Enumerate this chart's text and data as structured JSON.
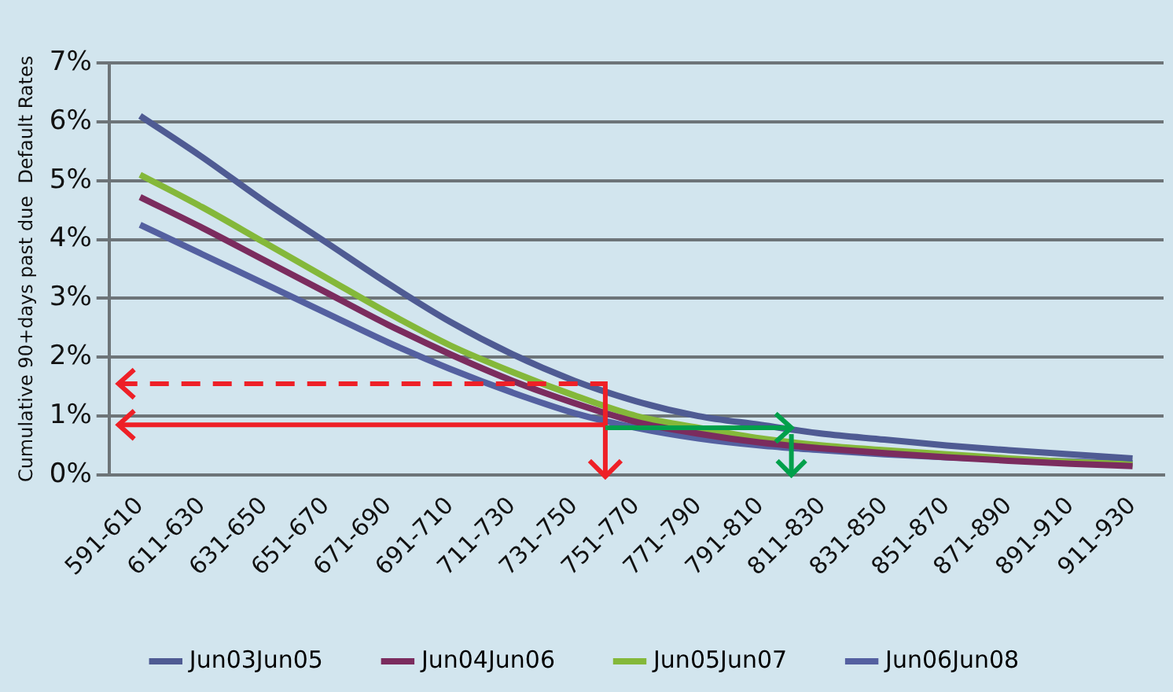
{
  "chart_data": {
    "type": "line",
    "ylabel": "Cumulative 90+days past due  Default Rates",
    "categories": [
      "591-610",
      "611-630",
      "631-650",
      "651-670",
      "671-690",
      "691-710",
      "711-730",
      "731-750",
      "751-770",
      "771-790",
      "791-810",
      "811-830",
      "831-850",
      "851-870",
      "871-890",
      "891-910",
      "911-930"
    ],
    "series": [
      {
        "name": "Jun03Jun05",
        "color": "#4f5b93",
        "values": [
          6.1,
          5.4,
          4.65,
          3.95,
          3.25,
          2.6,
          2.05,
          1.6,
          1.25,
          1.0,
          0.85,
          0.7,
          0.6,
          0.5,
          0.42,
          0.35,
          0.28
        ]
      },
      {
        "name": "Jun04Jun06",
        "color": "#7b2c5e",
        "values": [
          4.72,
          4.2,
          3.65,
          3.1,
          2.55,
          2.05,
          1.6,
          1.22,
          0.9,
          0.7,
          0.55,
          0.45,
          0.37,
          0.3,
          0.24,
          0.19,
          0.15
        ]
      },
      {
        "name": "Jun05Jun07",
        "color": "#84b83a",
        "values": [
          5.1,
          4.55,
          3.95,
          3.35,
          2.75,
          2.2,
          1.75,
          1.35,
          1.0,
          0.8,
          0.62,
          0.5,
          0.42,
          0.35,
          0.28,
          0.22,
          0.18
        ]
      },
      {
        "name": "Jun06Jun08",
        "color": "#5460a0",
        "values": [
          4.25,
          3.75,
          3.25,
          2.75,
          2.25,
          1.8,
          1.4,
          1.05,
          0.8,
          0.62,
          0.5,
          0.42,
          0.35,
          0.3,
          0.26,
          0.23,
          0.2
        ]
      }
    ],
    "ylim": [
      0,
      7
    ],
    "yticks": [
      {
        "value": 0,
        "label": "0%"
      },
      {
        "value": 1,
        "label": "1%"
      },
      {
        "value": 2,
        "label": "2%"
      },
      {
        "value": 3,
        "label": "3%"
      },
      {
        "value": 4,
        "label": "4%"
      },
      {
        "value": 5,
        "label": "5%"
      },
      {
        "value": 6,
        "label": "6%"
      },
      {
        "value": 7,
        "label": "7%"
      }
    ],
    "ref_lines": [
      {
        "axis": "y",
        "value": 1.55,
        "color": "#ee2027",
        "line_style": "dashed"
      },
      {
        "axis": "y",
        "value": 0.85,
        "color": "#ee2027",
        "line_style": "solid"
      }
    ],
    "grid": "y",
    "legend": "bottom",
    "marker": "none",
    "line_style": "solid"
  }
}
